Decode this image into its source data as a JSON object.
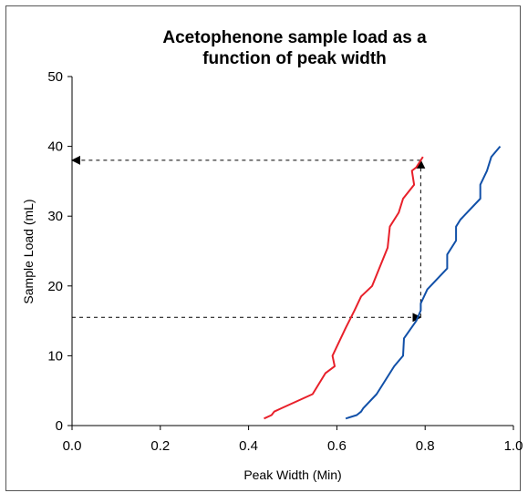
{
  "chart_data": {
    "type": "line",
    "title_line1": "Acetophenone sample load as a",
    "title_line2": "function of peak width",
    "xlabel": "Peak Width (Min)",
    "ylabel": "Sample Load (mL)",
    "xlim": [
      0.0,
      1.0
    ],
    "ylim": [
      0,
      50
    ],
    "x_ticks": [
      "0.0",
      "0.2",
      "0.4",
      "0.6",
      "0.8",
      "1.0"
    ],
    "y_ticks": [
      "0",
      "10",
      "20",
      "30",
      "40",
      "50"
    ],
    "grid": false,
    "series": [
      {
        "color": "#e8202a",
        "points": [
          [
            0.435,
            1.0
          ],
          [
            0.452,
            1.5
          ],
          [
            0.458,
            2.0
          ],
          [
            0.475,
            2.5
          ],
          [
            0.545,
            4.5
          ],
          [
            0.574,
            7.5
          ],
          [
            0.595,
            8.5
          ],
          [
            0.59,
            10.0
          ],
          [
            0.62,
            14.0
          ],
          [
            0.64,
            16.5
          ],
          [
            0.655,
            18.5
          ],
          [
            0.68,
            20.0
          ],
          [
            0.715,
            25.5
          ],
          [
            0.72,
            28.5
          ],
          [
            0.74,
            30.5
          ],
          [
            0.75,
            32.5
          ],
          [
            0.775,
            34.5
          ],
          [
            0.77,
            36.5
          ],
          [
            0.78,
            37.0
          ],
          [
            0.795,
            38.5
          ]
        ]
      },
      {
        "color": "#1150a8",
        "points": [
          [
            0.62,
            1.0
          ],
          [
            0.645,
            1.5
          ],
          [
            0.655,
            2.0
          ],
          [
            0.66,
            2.5
          ],
          [
            0.69,
            4.5
          ],
          [
            0.73,
            8.5
          ],
          [
            0.75,
            10.0
          ],
          [
            0.752,
            12.5
          ],
          [
            0.78,
            15.0
          ],
          [
            0.79,
            16.5
          ],
          [
            0.79,
            17.5
          ],
          [
            0.805,
            19.5
          ],
          [
            0.85,
            22.5
          ],
          [
            0.85,
            24.5
          ],
          [
            0.87,
            26.5
          ],
          [
            0.87,
            28.5
          ],
          [
            0.88,
            29.5
          ],
          [
            0.925,
            32.5
          ],
          [
            0.925,
            34.5
          ],
          [
            0.94,
            36.5
          ],
          [
            0.95,
            38.5
          ],
          [
            0.97,
            40.0
          ]
        ]
      }
    ],
    "annotations": [
      {
        "style": "dashed-arrow",
        "from": [
          0.79,
          38.0
        ],
        "to": [
          0.0,
          38.0
        ]
      },
      {
        "style": "dashed-arrow",
        "from": [
          0.0,
          15.5
        ],
        "to": [
          0.79,
          15.5
        ]
      },
      {
        "style": "dashed-arrow",
        "from": [
          0.79,
          15.5
        ],
        "to": [
          0.79,
          38.0
        ]
      }
    ]
  }
}
